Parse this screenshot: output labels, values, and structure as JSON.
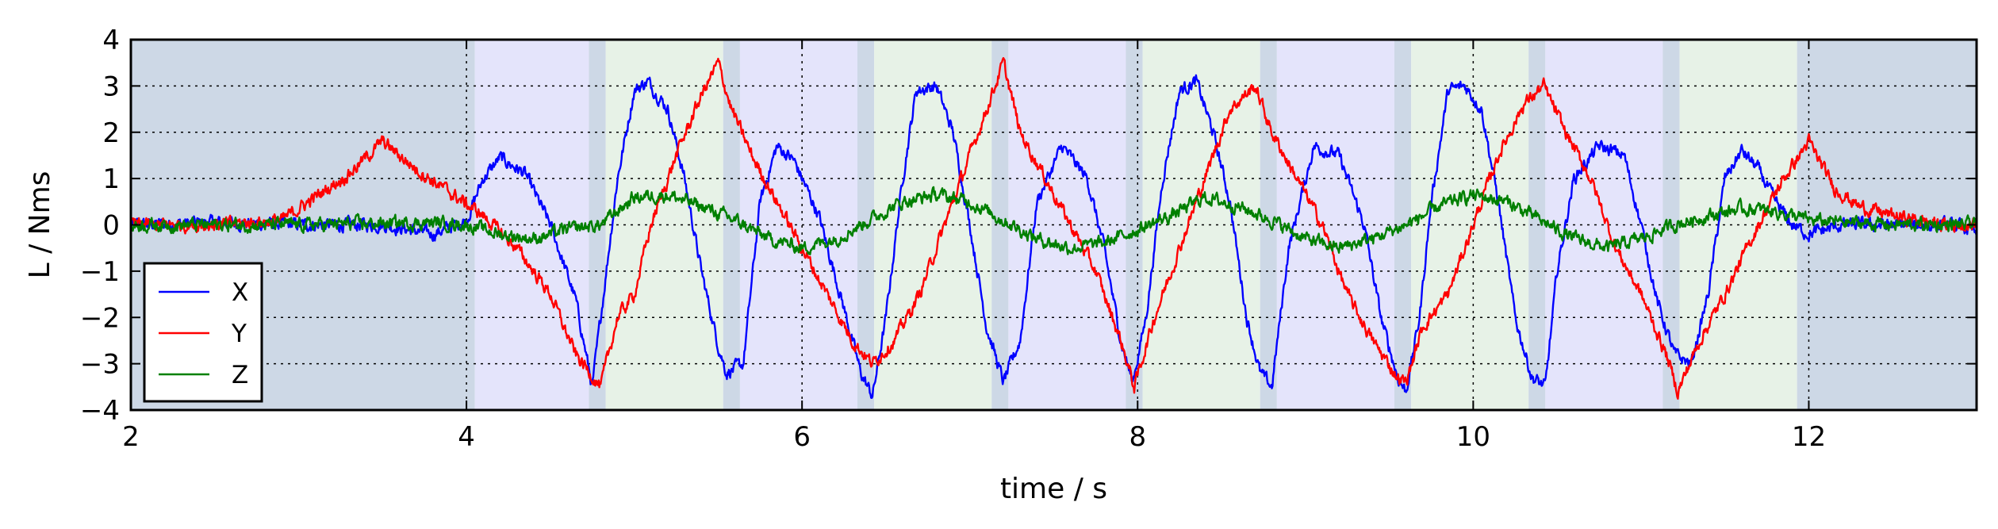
{
  "chart_data": {
    "type": "line",
    "xlabel": "time / s",
    "ylabel": "L / Nms",
    "xlim": [
      2,
      13
    ],
    "ylim": [
      -4,
      4
    ],
    "xticks": [
      2,
      4,
      6,
      8,
      10,
      12
    ],
    "yticks": [
      -4,
      -3,
      -2,
      -1,
      0,
      1,
      2,
      3,
      4
    ],
    "grid": true,
    "legend_position": "lower-left",
    "phase_colors": {
      "gray": "#cdd8e6",
      "purple": "#e4e4fb",
      "green": "#e7f2e7"
    },
    "phases": [
      {
        "x0": 2.0,
        "x1": 4.05,
        "color": "gray"
      },
      {
        "x0": 4.05,
        "x1": 4.73,
        "color": "purple"
      },
      {
        "x0": 4.73,
        "x1": 4.83,
        "color": "gray"
      },
      {
        "x0": 4.83,
        "x1": 5.53,
        "color": "green"
      },
      {
        "x0": 5.53,
        "x1": 5.63,
        "color": "gray"
      },
      {
        "x0": 5.63,
        "x1": 6.33,
        "color": "purple"
      },
      {
        "x0": 6.33,
        "x1": 6.43,
        "color": "gray"
      },
      {
        "x0": 6.43,
        "x1": 7.13,
        "color": "green"
      },
      {
        "x0": 7.13,
        "x1": 7.23,
        "color": "gray"
      },
      {
        "x0": 7.23,
        "x1": 7.93,
        "color": "purple"
      },
      {
        "x0": 7.93,
        "x1": 8.03,
        "color": "gray"
      },
      {
        "x0": 8.03,
        "x1": 8.73,
        "color": "green"
      },
      {
        "x0": 8.73,
        "x1": 8.83,
        "color": "gray"
      },
      {
        "x0": 8.83,
        "x1": 9.53,
        "color": "purple"
      },
      {
        "x0": 9.53,
        "x1": 9.63,
        "color": "gray"
      },
      {
        "x0": 9.63,
        "x1": 10.33,
        "color": "green"
      },
      {
        "x0": 10.33,
        "x1": 10.43,
        "color": "gray"
      },
      {
        "x0": 10.43,
        "x1": 11.13,
        "color": "purple"
      },
      {
        "x0": 11.13,
        "x1": 11.23,
        "color": "gray"
      },
      {
        "x0": 11.23,
        "x1": 11.93,
        "color": "green"
      },
      {
        "x0": 11.93,
        "x1": 13.0,
        "color": "gray"
      }
    ],
    "series": [
      {
        "name": "X",
        "color": "#0000ff",
        "x": [
          2.0,
          2.5,
          3.0,
          3.5,
          3.8,
          4.0,
          4.1,
          4.2,
          4.35,
          4.5,
          4.65,
          4.75,
          4.8,
          4.9,
          5.0,
          5.08,
          5.2,
          5.3,
          5.4,
          5.5,
          5.55,
          5.65,
          5.75,
          5.85,
          5.95,
          6.1,
          6.25,
          6.35,
          6.42,
          6.5,
          6.6,
          6.68,
          6.8,
          6.9,
          7.0,
          7.1,
          7.2,
          7.3,
          7.4,
          7.55,
          7.7,
          7.8,
          7.9,
          7.97,
          8.05,
          8.15,
          8.25,
          8.35,
          8.45,
          8.55,
          8.65,
          8.73,
          8.8,
          8.9,
          9.05,
          9.2,
          9.35,
          9.45,
          9.55,
          9.6,
          9.68,
          9.75,
          9.85,
          9.95,
          10.05,
          10.15,
          10.25,
          10.35,
          10.43,
          10.5,
          10.6,
          10.75,
          10.9,
          11.0,
          11.1,
          11.2,
          11.3,
          11.4,
          11.5,
          11.6,
          11.7,
          11.8,
          11.9,
          12.0,
          12.2,
          12.5,
          12.8,
          13.0
        ],
        "y": [
          0.0,
          0.05,
          0.0,
          0.0,
          -0.2,
          0.1,
          1.0,
          1.45,
          1.1,
          0.0,
          -1.6,
          -3.5,
          -2.0,
          1.0,
          2.9,
          3.1,
          2.5,
          1.0,
          -1.0,
          -2.6,
          -3.2,
          -3.0,
          0.5,
          1.7,
          1.4,
          0.2,
          -1.8,
          -3.2,
          -3.7,
          -2.0,
          1.0,
          2.9,
          3.0,
          2.0,
          0.0,
          -2.2,
          -3.4,
          -2.5,
          0.5,
          1.7,
          1.0,
          -0.5,
          -2.5,
          -3.4,
          -2.0,
          1.0,
          2.9,
          3.1,
          2.0,
          0.5,
          -2.0,
          -3.2,
          -3.5,
          -0.5,
          1.7,
          1.5,
          0.0,
          -2.0,
          -3.3,
          -3.6,
          -2.0,
          0.5,
          2.9,
          3.0,
          2.5,
          0.5,
          -2.0,
          -3.3,
          -3.5,
          -1.0,
          1.0,
          1.7,
          1.5,
          0.0,
          -1.7,
          -2.8,
          -3.0,
          -1.5,
          1.0,
          1.6,
          1.2,
          0.5,
          0.0,
          -0.2,
          0.0,
          0.0,
          0.0,
          -0.1
        ]
      },
      {
        "name": "Y",
        "color": "#ff0000",
        "x": [
          2.0,
          2.5,
          2.9,
          3.1,
          3.3,
          3.5,
          3.7,
          3.9,
          4.1,
          4.3,
          4.5,
          4.65,
          4.8,
          4.9,
          5.0,
          5.1,
          5.25,
          5.4,
          5.5,
          5.58,
          5.7,
          5.85,
          6.0,
          6.15,
          6.3,
          6.42,
          6.55,
          6.7,
          6.85,
          7.0,
          7.1,
          7.2,
          7.3,
          7.45,
          7.6,
          7.75,
          7.9,
          7.98,
          8.1,
          8.25,
          8.4,
          8.55,
          8.7,
          8.8,
          8.95,
          9.1,
          9.25,
          9.4,
          9.55,
          9.6,
          9.7,
          9.85,
          10.0,
          10.15,
          10.3,
          10.42,
          10.55,
          10.7,
          10.85,
          11.0,
          11.15,
          11.22,
          11.35,
          11.5,
          11.7,
          11.85,
          12.0,
          12.15,
          12.3,
          12.5,
          12.8,
          13.0
        ],
        "y": [
          0.0,
          0.0,
          0.1,
          0.6,
          1.1,
          1.8,
          1.2,
          0.7,
          0.2,
          -0.5,
          -1.5,
          -2.8,
          -3.5,
          -2.0,
          -1.5,
          0.0,
          1.5,
          2.8,
          3.5,
          2.5,
          1.5,
          0.5,
          -0.5,
          -1.5,
          -2.5,
          -3.0,
          -2.5,
          -1.5,
          0.0,
          1.5,
          2.5,
          3.5,
          2.0,
          1.0,
          0.0,
          -1.0,
          -2.5,
          -3.5,
          -2.0,
          -0.5,
          1.0,
          2.5,
          3.0,
          2.0,
          1.0,
          0.0,
          -1.5,
          -2.5,
          -3.3,
          -3.4,
          -2.2,
          -1.5,
          0.0,
          1.5,
          2.6,
          3.0,
          2.0,
          1.0,
          -0.5,
          -1.5,
          -2.8,
          -3.6,
          -2.5,
          -1.5,
          0.0,
          1.0,
          1.8,
          0.8,
          0.4,
          0.2,
          0.0,
          0.0
        ]
      },
      {
        "name": "Z",
        "color": "#008000",
        "x": [
          2.0,
          3.0,
          3.8,
          4.0,
          4.2,
          4.4,
          4.6,
          4.8,
          5.0,
          5.2,
          5.4,
          5.6,
          5.8,
          6.0,
          6.2,
          6.4,
          6.6,
          6.8,
          7.0,
          7.2,
          7.4,
          7.6,
          7.8,
          8.0,
          8.2,
          8.4,
          8.6,
          8.8,
          9.0,
          9.2,
          9.4,
          9.6,
          9.8,
          10.0,
          10.2,
          10.4,
          10.6,
          10.8,
          11.0,
          11.2,
          11.4,
          11.6,
          11.8,
          12.0,
          12.5,
          13.0
        ],
        "y": [
          0.0,
          0.0,
          0.05,
          0.0,
          -0.2,
          -0.3,
          -0.1,
          0.0,
          0.6,
          0.65,
          0.4,
          0.1,
          -0.3,
          -0.5,
          -0.3,
          0.1,
          0.5,
          0.65,
          0.5,
          0.1,
          -0.3,
          -0.5,
          -0.4,
          -0.1,
          0.2,
          0.6,
          0.4,
          0.1,
          -0.3,
          -0.5,
          -0.3,
          0.0,
          0.4,
          0.65,
          0.5,
          0.1,
          -0.3,
          -0.5,
          -0.3,
          0.0,
          0.2,
          0.35,
          0.3,
          0.1,
          0.0,
          0.0
        ]
      }
    ]
  }
}
